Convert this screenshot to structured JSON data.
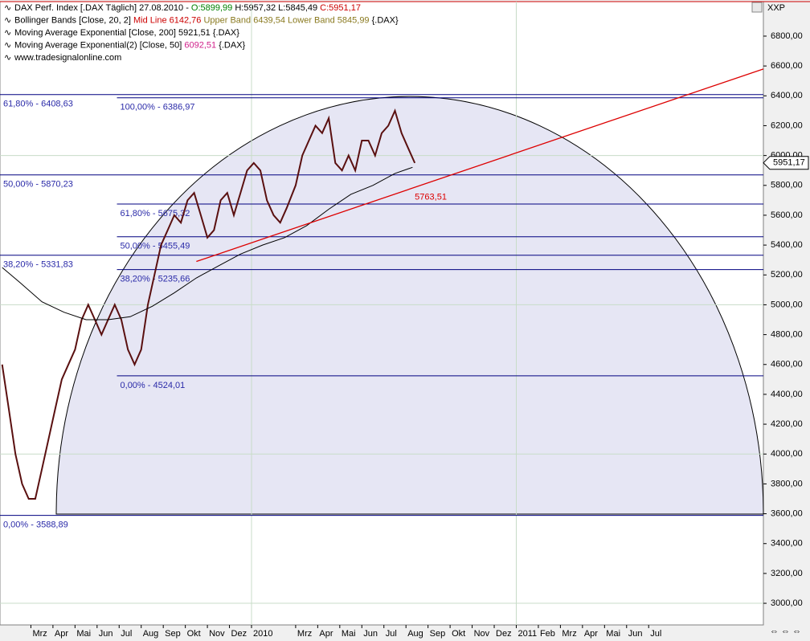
{
  "chart_data": {
    "type": "line",
    "header": [
      [
        {
          "text": "DAX Perf. Index [.DAX  Täglich] 27.08.2010 - ",
          "color": "#000000"
        },
        {
          "text": "O:5899,99",
          "color": "#008000"
        },
        {
          "text": " H:5957,32 L:5845,49 ",
          "color": "#000000"
        },
        {
          "text": "C:5951,17",
          "color": "#cc0000"
        }
      ],
      [
        {
          "text": "Bollinger Bands [Close, 20, 2] ",
          "color": "#000000"
        },
        {
          "text": "Mid Line 6142,76",
          "color": "#cc0000"
        },
        {
          "text": " Upper Band 6439,54 Lower Band 5845,99",
          "color": "#8a7a20"
        },
        {
          "text": " {.DAX}",
          "color": "#000000"
        }
      ],
      [
        {
          "text": "Moving Average Exponential [Close, 200] 5921,51 {.DAX}",
          "color": "#000000"
        }
      ],
      [
        {
          "text": "Moving Average Exponential(2) [Close, 50] ",
          "color": "#000000"
        },
        {
          "text": "6092,51",
          "color": "#d0208a"
        },
        {
          "text": " {.DAX}",
          "color": "#000000"
        }
      ],
      [
        {
          "text": "www.tradesignalonline.com",
          "color": "#000000"
        }
      ]
    ],
    "corner_label": "XXP",
    "last_price_label": {
      "value": 5951.17,
      "label": "5951,17"
    },
    "xlim": [
      -1.4,
      33.2
    ],
    "ylim": [
      2855,
      7042
    ],
    "xticks": [
      {
        "value": 0,
        "label": "Mrz"
      },
      {
        "value": 1,
        "label": "Apr"
      },
      {
        "value": 2,
        "label": "Mai"
      },
      {
        "value": 3,
        "label": "Jun"
      },
      {
        "value": 4,
        "label": "Jul"
      },
      {
        "value": 5,
        "label": "Aug"
      },
      {
        "value": 6,
        "label": "Sep"
      },
      {
        "value": 7,
        "label": "Okt"
      },
      {
        "value": 8,
        "label": "Nov"
      },
      {
        "value": 9,
        "label": "Dez"
      },
      {
        "value": 10,
        "label": "2010"
      },
      {
        "value": 12,
        "label": "Mrz"
      },
      {
        "value": 13,
        "label": "Apr"
      },
      {
        "value": 14,
        "label": "Mai"
      },
      {
        "value": 15,
        "label": "Jun"
      },
      {
        "value": 16,
        "label": "Jul"
      },
      {
        "value": 17,
        "label": "Aug"
      },
      {
        "value": 18,
        "label": "Sep"
      },
      {
        "value": 19,
        "label": "Okt"
      },
      {
        "value": 20,
        "label": "Nov"
      },
      {
        "value": 21,
        "label": "Dez"
      },
      {
        "value": 22,
        "label": "2011"
      },
      {
        "value": 23,
        "label": "Feb"
      },
      {
        "value": 24,
        "label": "Mrz"
      },
      {
        "value": 25,
        "label": "Apr"
      },
      {
        "value": 26,
        "label": "Mai"
      },
      {
        "value": 27,
        "label": "Jun"
      },
      {
        "value": 28,
        "label": "Jul"
      }
    ],
    "yticks": [
      {
        "value": 6800,
        "label": "6800,00"
      },
      {
        "value": 6600,
        "label": "6600,00"
      },
      {
        "value": 6400,
        "label": "6400,00"
      },
      {
        "value": 6200,
        "label": "6200,00"
      },
      {
        "value": 6000,
        "label": "6000,00"
      },
      {
        "value": 5800,
        "label": "5800,00"
      },
      {
        "value": 5600,
        "label": "5600,00"
      },
      {
        "value": 5400,
        "label": "5400,00"
      },
      {
        "value": 5200,
        "label": "5200,00"
      },
      {
        "value": 5000,
        "label": "5000,00"
      },
      {
        "value": 4800,
        "label": "4800,00"
      },
      {
        "value": 4600,
        "label": "4600,00"
      },
      {
        "value": 4400,
        "label": "4400,00"
      },
      {
        "value": 4200,
        "label": "4200,00"
      },
      {
        "value": 4000,
        "label": "4000,00"
      },
      {
        "value": 3800,
        "label": "3800,00"
      },
      {
        "value": 3600,
        "label": "3600,00"
      },
      {
        "value": 3400,
        "label": "3400,00"
      },
      {
        "value": 3200,
        "label": "3200,00"
      },
      {
        "value": 3000,
        "label": "3000,00"
      }
    ],
    "xgrid": [
      10,
      22
    ],
    "ygrid": [
      3000,
      4000,
      5000,
      6000
    ],
    "series": [
      {
        "name": "DAX",
        "color": "#5a1010",
        "x": [
          -1.3,
          -1.0,
          -0.7,
          -0.4,
          -0.1,
          0.2,
          0.5,
          0.8,
          1.1,
          1.4,
          1.7,
          2.0,
          2.3,
          2.6,
          2.9,
          3.2,
          3.5,
          3.8,
          4.1,
          4.4,
          4.7,
          5.0,
          5.3,
          5.6,
          5.9,
          6.2,
          6.5,
          6.8,
          7.1,
          7.4,
          7.7,
          8.0,
          8.3,
          8.6,
          8.9,
          9.2,
          9.5,
          9.8,
          10.1,
          10.4,
          10.7,
          11.0,
          11.3,
          11.6,
          12.0,
          12.3,
          12.6,
          12.9,
          13.2,
          13.5,
          13.8,
          14.1,
          14.4,
          14.7,
          15.0,
          15.3,
          15.6,
          15.9,
          16.2,
          16.5,
          16.8,
          17.1,
          17.4
        ],
        "values": [
          4600,
          4300,
          4000,
          3800,
          3700,
          3700,
          3900,
          4100,
          4300,
          4500,
          4600,
          4700,
          4900,
          5000,
          4900,
          4800,
          4900,
          5000,
          4900,
          4700,
          4600,
          4700,
          5000,
          5200,
          5400,
          5500,
          5600,
          5550,
          5700,
          5750,
          5600,
          5450,
          5500,
          5700,
          5750,
          5600,
          5750,
          5900,
          5950,
          5900,
          5700,
          5600,
          5550,
          5650,
          5800,
          6000,
          6100,
          6200,
          6150,
          6250,
          5950,
          5900,
          6000,
          5900,
          6100,
          6100,
          6000,
          6150,
          6200,
          6300,
          6150,
          6050,
          5950
        ]
      },
      {
        "name": "Moving Average Exponential [Close, 200]",
        "color": "#000000",
        "x": [
          -1.3,
          -0.5,
          0.5,
          1.5,
          2.5,
          3.5,
          4.5,
          5.5,
          6.5,
          7.5,
          8.5,
          9.5,
          10.5,
          11.5,
          12.5,
          13.5,
          14.5,
          15.5,
          16.5,
          17.3
        ],
        "values": [
          5250,
          5150,
          5020,
          4950,
          4900,
          4900,
          4920,
          4990,
          5080,
          5180,
          5260,
          5340,
          5400,
          5450,
          5530,
          5640,
          5740,
          5800,
          5880,
          5921
        ]
      }
    ],
    "fib_groups": [
      {
        "x": -1.4,
        "levels": [
          {
            "value": 6408.63,
            "label": "61,80% - 6408,63"
          },
          {
            "value": 5870.23,
            "label": "50,00% - 5870,23"
          },
          {
            "value": 5331.83,
            "label": "38,20% - 5331,83"
          },
          {
            "value": 3588.89,
            "label": "0,00% - 3588,89"
          }
        ]
      },
      {
        "x": 3.9,
        "levels": [
          {
            "value": 6386.97,
            "label": "100,00% - 6386,97"
          },
          {
            "value": 5675.32,
            "label": "61,80% - 5675,32"
          },
          {
            "value": 5455.49,
            "label": "50,00% - 5455,49"
          },
          {
            "value": 5235.66,
            "label": "38,20% - 5235,66"
          },
          {
            "value": 4524.01,
            "label": "0,00% - 4524,01"
          }
        ]
      }
    ],
    "trendline": {
      "x": [
        7.5,
        33.2
      ],
      "values": [
        5290,
        6580
      ],
      "label": "5763,51",
      "label_x": 17.4,
      "label_value": 5720,
      "color": "#dd0000"
    }
  }
}
